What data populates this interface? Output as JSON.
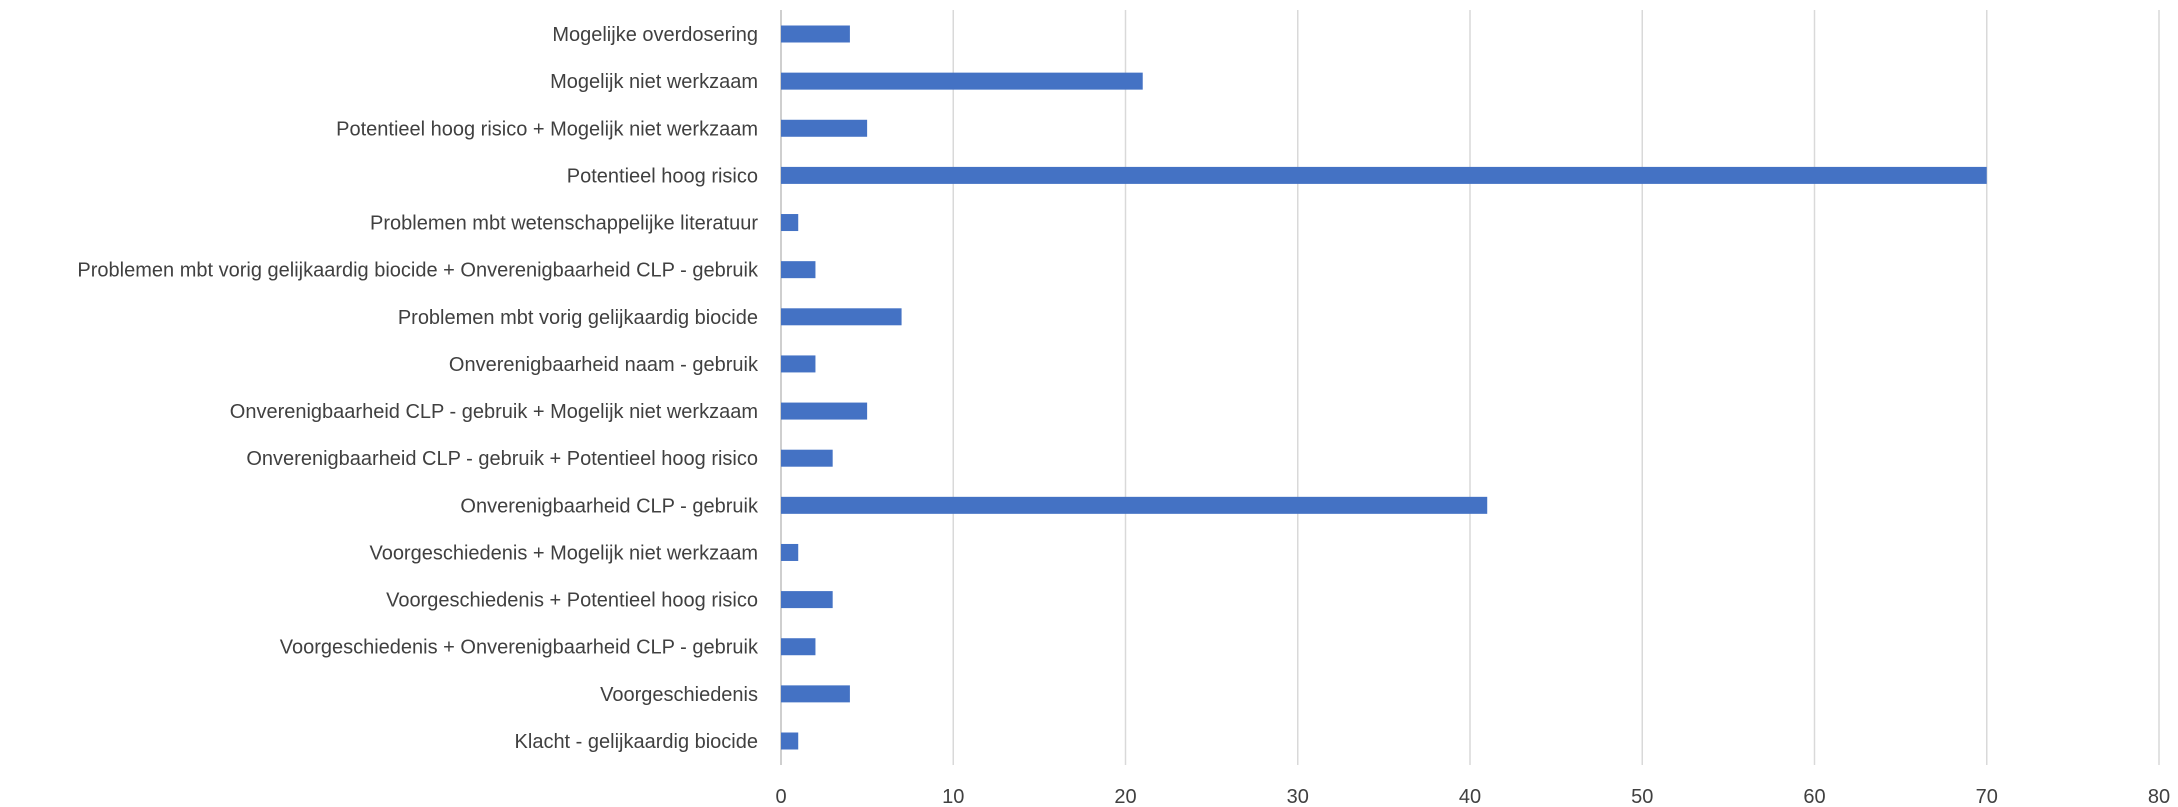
{
  "chart_data": {
    "type": "bar",
    "orientation": "horizontal",
    "title": "",
    "xlabel": "",
    "ylabel": "",
    "categories": [
      "Mogelijke overdosering",
      "Mogelijk niet werkzaam",
      "Potentieel hoog risico + Mogelijk niet werkzaam",
      "Potentieel hoog risico",
      "Problemen mbt wetenschappelijke literatuur",
      "Problemen mbt vorig gelijkaardig biocide + Onverenigbaarheid CLP - gebruik",
      "Problemen mbt vorig gelijkaardig biocide",
      "Onverenigbaarheid naam - gebruik",
      "Onverenigbaarheid CLP - gebruik + Mogelijk niet werkzaam",
      "Onverenigbaarheid CLP - gebruik + Potentieel hoog risico",
      "Onverenigbaarheid CLP - gebruik",
      "Voorgeschiedenis + Mogelijk niet werkzaam",
      "Voorgeschiedenis + Potentieel hoog risico",
      "Voorgeschiedenis + Onverenigbaarheid CLP - gebruik",
      "Voorgeschiedenis",
      "Klacht - gelijkaardig biocide"
    ],
    "values": [
      4,
      21,
      5,
      70,
      1,
      2,
      7,
      2,
      5,
      3,
      41,
      1,
      3,
      2,
      4,
      1
    ],
    "xlim": [
      0,
      80
    ],
    "xticks": [
      0,
      10,
      20,
      30,
      40,
      50,
      60,
      70,
      80
    ],
    "grid": "vertical",
    "legend": "none",
    "colors": {
      "bar": "#4472C4",
      "grid": "#D9D9D9",
      "text": "#404040"
    }
  }
}
